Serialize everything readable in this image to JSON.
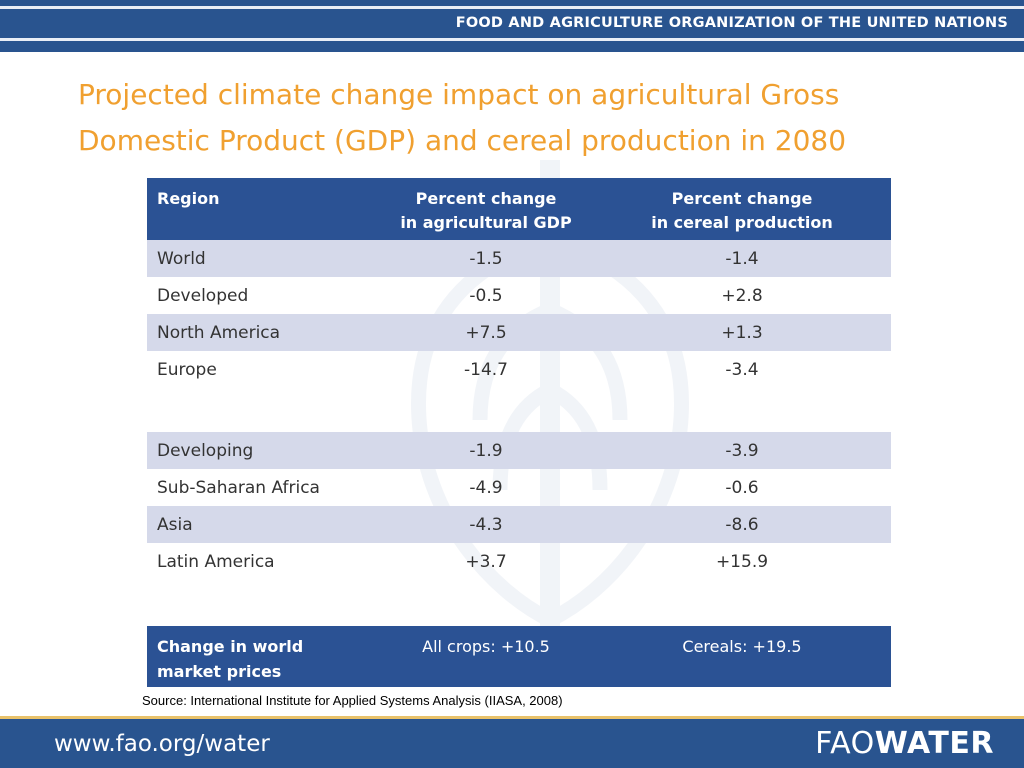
{
  "header": {
    "organization": "FOOD AND AGRICULTURE ORGANIZATION OF THE UNITED NATIONS"
  },
  "title": "Projected climate change impact on agricultural Gross Domestic Product (GDP) and cereal production in 2080",
  "table": {
    "headers": [
      "Region",
      "Percent change\nin agricultural GDP",
      "Percent change\nin cereal production"
    ],
    "rows": [
      [
        "World",
        "-1.5",
        "-1.4"
      ],
      [
        "Developed",
        "-0.5",
        "+2.8"
      ],
      [
        "North America",
        "+7.5",
        "+1.3"
      ],
      [
        "Europe",
        "-14.7",
        "-3.4"
      ],
      [
        "Developing",
        "-1.9",
        "-3.9"
      ],
      [
        "Sub-Saharan Africa",
        "-4.9",
        "-0.6"
      ],
      [
        "Asia",
        "-4.3",
        "-8.6"
      ],
      [
        "Latin America",
        "+3.7",
        "+15.9"
      ]
    ],
    "footer": [
      "Change in world\nmarket prices",
      "All crops: +10.5",
      "Cereals: +19.5"
    ]
  },
  "source": "Source: International Institute for Applied Systems Analysis (IIASA, 2008)",
  "bottom": {
    "url": "www.fao.org/water",
    "logo_light": "FAO",
    "logo_bold": "WATER"
  }
}
